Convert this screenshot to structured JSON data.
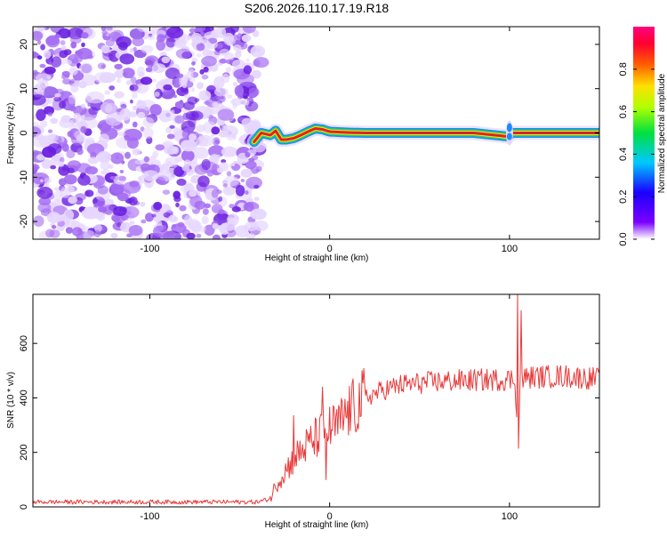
{
  "title": "S206.2026.110.17.19.R18",
  "colors": {
    "snr_line": "#e83a3a",
    "ridge_core": "#e0202a",
    "ridge_mid": "#ffe600",
    "ridge_outer": "#22d06a",
    "ridge_edge": "#1a8cff",
    "noise_dark": "#6a1fe0",
    "noise_mid": "#a56cf2",
    "noise_light": "#e6d6ff"
  },
  "chart_data": [
    {
      "id": "spectrogram",
      "type": "heatmap",
      "xlabel": "Height of straight line (km)",
      "ylabel": "Frequency (Hz)",
      "xlim": [
        -165,
        150
      ],
      "ylim": [
        -24,
        24
      ],
      "xticks": [
        -100,
        0,
        100
      ],
      "yticks": [
        -20,
        -10,
        0,
        10,
        20
      ],
      "noise_region_x": [
        -165,
        -40
      ],
      "ridge": {
        "x": [
          -42,
          -38,
          -33,
          -30,
          -27,
          -24,
          -20,
          -16,
          -12,
          -8,
          -4,
          0,
          5,
          10,
          20,
          40,
          60,
          80,
          99,
          100,
          101,
          110,
          130,
          150
        ],
        "freq": [
          -2,
          0,
          -0.5,
          0.5,
          -1.5,
          -1.5,
          -1.2,
          -0.5,
          0.3,
          1.0,
          0.8,
          0.3,
          0.2,
          0.1,
          0.0,
          0.0,
          0.0,
          0.0,
          -0.8,
          -0.5,
          0.0,
          0.0,
          0.0,
          0.0
        ]
      },
      "colorbar": {
        "label": "Normalized spectral amplitude",
        "range": [
          0,
          1
        ],
        "ticks": [
          "0.0",
          "0.2",
          "0.4",
          "0.6",
          "0.8"
        ],
        "colormap": [
          "#ffffff",
          "#7b00ff",
          "#1a00ff",
          "#00c8ff",
          "#00e040",
          "#b0ff00",
          "#ffe000",
          "#ff6000",
          "#ff0030",
          "#ff0080"
        ]
      }
    },
    {
      "id": "snr",
      "type": "line",
      "xlabel": "Height of straight line (km)",
      "ylabel": "SNR (10 * v/v)",
      "xlim": [
        -165,
        150
      ],
      "ylim": [
        0,
        780
      ],
      "xticks": [
        -100,
        0,
        100
      ],
      "yticks": [
        0,
        200,
        400,
        600
      ],
      "profile": {
        "x": [
          -165,
          -120,
          -40,
          -33,
          -30,
          -25,
          -20,
          -15,
          -10,
          -5,
          0,
          5,
          10,
          20,
          30,
          40,
          60,
          80,
          100,
          103,
          105,
          106,
          107,
          110,
          120,
          130,
          140,
          150
        ],
        "y": [
          18,
          18,
          18,
          30,
          80,
          130,
          175,
          210,
          240,
          265,
          285,
          300,
          345,
          400,
          430,
          448,
          460,
          465,
          468,
          470,
          230,
          480,
          470,
          475,
          478,
          480,
          475,
          470
        ]
      },
      "spikes": [
        {
          "x": -20,
          "y": 335
        },
        {
          "x": -4,
          "y": 440
        },
        {
          "x": -2,
          "y": 100
        },
        {
          "x": 104.5,
          "y": 780
        },
        {
          "x": 105,
          "y": 215
        },
        {
          "x": 106.5,
          "y": 720
        }
      ]
    }
  ]
}
